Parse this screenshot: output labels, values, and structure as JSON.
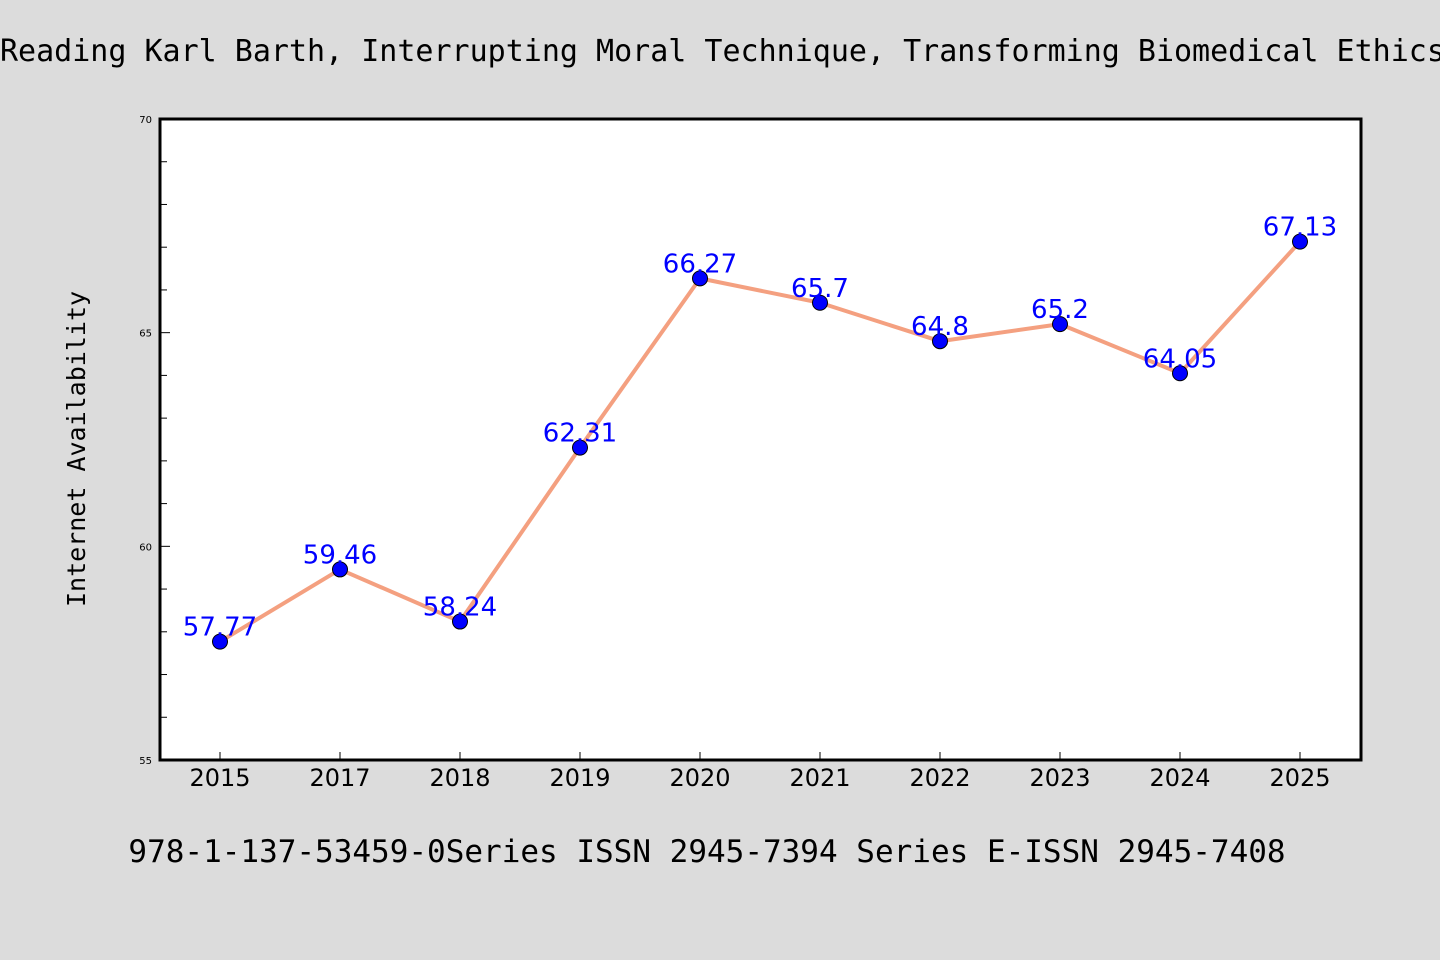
{
  "chart_data": {
    "type": "line",
    "title": "Reading Karl Barth, Interrupting Moral Technique, Transforming Biomedical Ethics",
    "footer": "978-1-137-53459-0Series ISSN 2945-7394 Series E-ISSN 2945-7408",
    "xlabel": "",
    "ylabel": "Internet Availability",
    "categories": [
      "2015",
      "2017",
      "2018",
      "2019",
      "2020",
      "2021",
      "2022",
      "2023",
      "2024",
      "2025"
    ],
    "series": [
      {
        "values": [
          57.77,
          59.46,
          58.24,
          62.31,
          66.27,
          65.7,
          64.8,
          65.2,
          64.05,
          67.13
        ],
        "data_labels": [
          "57.77",
          "59.46",
          "58.24",
          "62.31",
          "66.27",
          "65.7",
          "64.8",
          "65.2",
          "64.05",
          "67.13"
        ]
      }
    ],
    "ylim": [
      55,
      70
    ],
    "yticks": [
      "55",
      "60",
      "65",
      "70"
    ],
    "grid": false,
    "legend": "none",
    "colors": {
      "line": "#f4a080",
      "marker": "#0000ff",
      "data_label": "#0000ff",
      "plot_background": "#ffffff",
      "page_background": "#dcdcdc"
    }
  }
}
